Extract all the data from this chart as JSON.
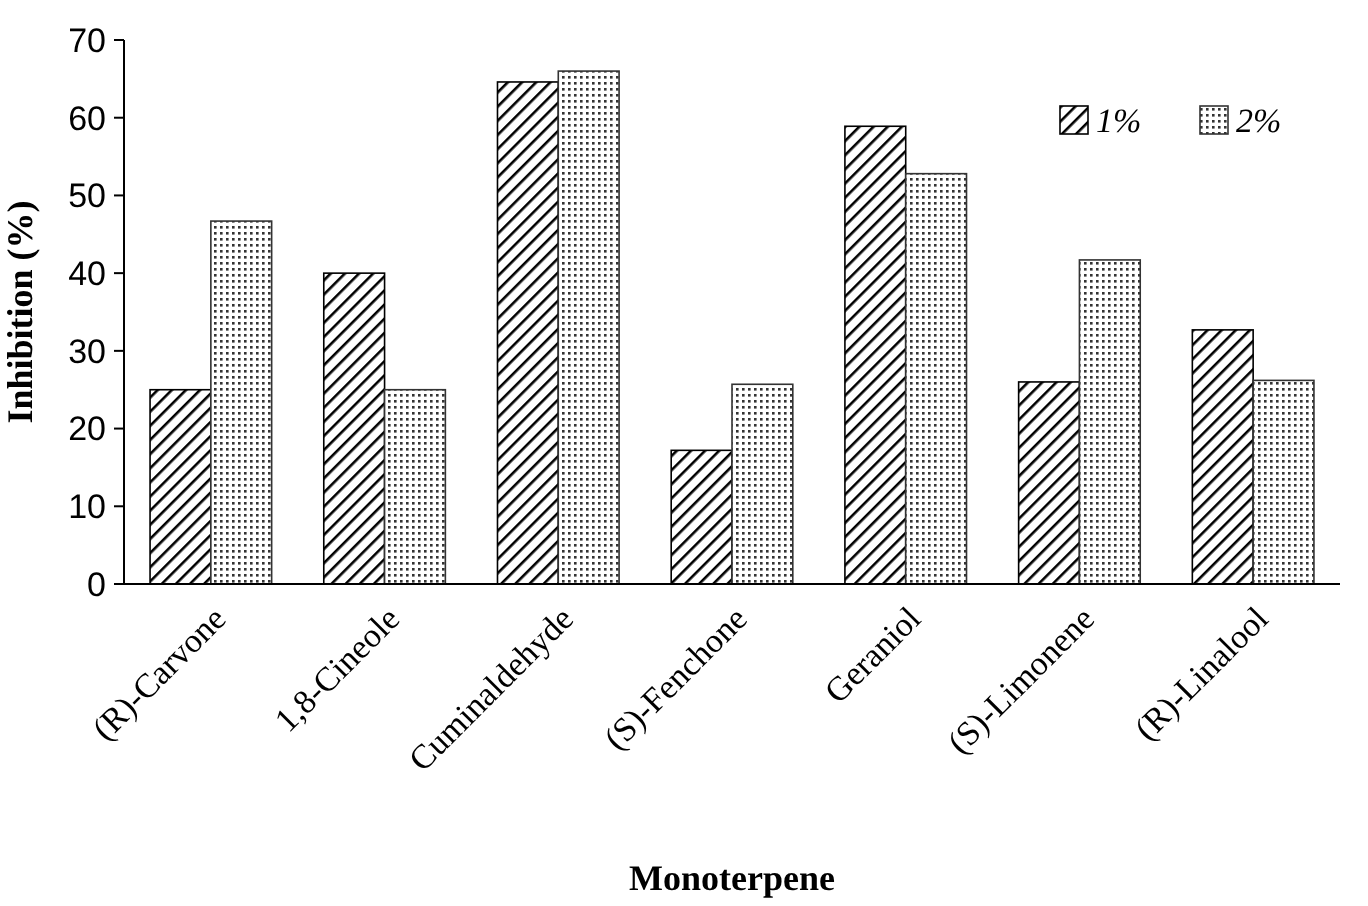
{
  "chart_data": {
    "type": "bar",
    "xlabel": "Monoterpene",
    "ylabel": "Inhibition (%)",
    "categories": [
      "(R)-Carvone",
      "1,8-Cineole",
      "Cuminaldehyde",
      "(S)-Fenchone",
      "Geraniol",
      "(S)-Limonene",
      "(R)-Linalool"
    ],
    "series": [
      {
        "name": "1%",
        "color": "#000000",
        "values": [
          25,
          40,
          64.6,
          17.2,
          58.9,
          26,
          32.7
        ]
      },
      {
        "name": "2%",
        "color": "#333333",
        "values": [
          46.7,
          25,
          66,
          25.7,
          52.8,
          41.7,
          26.2
        ]
      }
    ],
    "ylim": [
      0,
      70
    ],
    "yticks": [
      0,
      10,
      20,
      30,
      40,
      50,
      60,
      70
    ],
    "grid": false,
    "legend": "top right"
  }
}
